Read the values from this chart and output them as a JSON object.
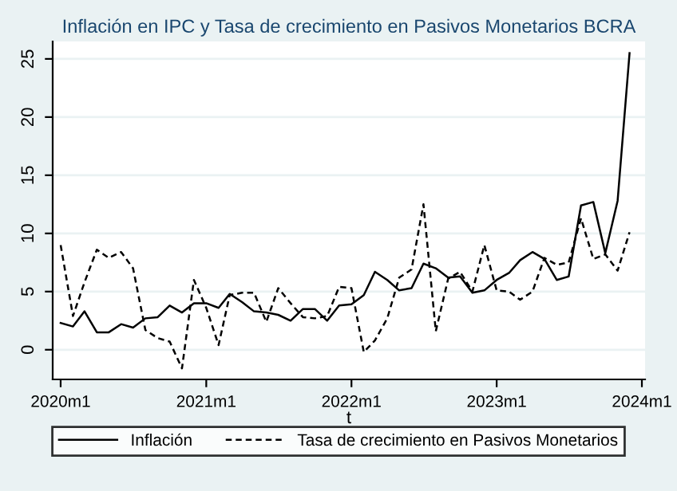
{
  "chart_data": {
    "type": "line",
    "title": "Inflación en IPC y Tasa de crecimiento en Pasivos Monetarios BCRA",
    "xlabel": "t",
    "x": [
      "2020-01",
      "2020-02",
      "2020-03",
      "2020-04",
      "2020-05",
      "2020-06",
      "2020-07",
      "2020-08",
      "2020-09",
      "2020-10",
      "2020-11",
      "2020-12",
      "2021-01",
      "2021-02",
      "2021-03",
      "2021-04",
      "2021-05",
      "2021-06",
      "2021-07",
      "2021-08",
      "2021-09",
      "2021-10",
      "2021-11",
      "2021-12",
      "2022-01",
      "2022-02",
      "2022-03",
      "2022-04",
      "2022-05",
      "2022-06",
      "2022-07",
      "2022-08",
      "2022-09",
      "2022-10",
      "2022-11",
      "2022-12",
      "2023-01",
      "2023-02",
      "2023-03",
      "2023-04",
      "2023-05",
      "2023-06",
      "2023-07",
      "2023-08",
      "2023-09",
      "2023-10",
      "2023-11",
      "2023-12"
    ],
    "series": [
      {
        "name": "Inflación",
        "color": "#000000",
        "line_style": "solid",
        "values": [
          2.3,
          2.0,
          3.3,
          1.5,
          1.5,
          2.2,
          1.9,
          2.7,
          2.8,
          3.8,
          3.2,
          4.0,
          4.0,
          3.6,
          4.8,
          4.1,
          3.3,
          3.2,
          3.0,
          2.5,
          3.5,
          3.5,
          2.5,
          3.8,
          3.9,
          4.7,
          6.7,
          6.0,
          5.1,
          5.3,
          7.4,
          7.0,
          6.2,
          6.3,
          4.9,
          5.1,
          6.0,
          6.6,
          7.7,
          8.4,
          7.8,
          6.0,
          6.3,
          12.4,
          12.7,
          8.3,
          12.8,
          25.5
        ]
      },
      {
        "name": "Tasa de crecimiento en Pasivos Monetarios",
        "color": "#000000",
        "line_style": "dashed",
        "values": [
          9.0,
          2.9,
          5.8,
          8.6,
          7.9,
          8.4,
          7.0,
          1.7,
          1.0,
          0.7,
          -1.6,
          6.0,
          3.6,
          0.4,
          4.7,
          4.9,
          4.9,
          2.4,
          5.3,
          4.0,
          2.8,
          2.7,
          2.9,
          5.4,
          5.3,
          -0.2,
          0.8,
          2.7,
          6.2,
          6.9,
          12.5,
          1.6,
          6.1,
          6.7,
          5.0,
          9.0,
          5.1,
          5.0,
          4.3,
          5.0,
          7.9,
          7.3,
          7.5,
          11.3,
          7.8,
          8.2,
          6.8,
          10.1
        ]
      }
    ],
    "xlim": [
      "2019-12-12",
      "2024-01-09"
    ],
    "xticks": [
      {
        "value": "2020-01",
        "label": "2020m1"
      },
      {
        "value": "2021-01",
        "label": "2021m1"
      },
      {
        "value": "2022-01",
        "label": "2022m1"
      },
      {
        "value": "2023-01",
        "label": "2023m1"
      },
      {
        "value": "2024-01",
        "label": "2024m1"
      }
    ],
    "ylim": [
      -2.55,
      26.5
    ],
    "yticks": [
      0,
      5,
      10,
      15,
      20,
      25
    ],
    "grid": "y",
    "legend": "bottom",
    "marker": "none"
  }
}
